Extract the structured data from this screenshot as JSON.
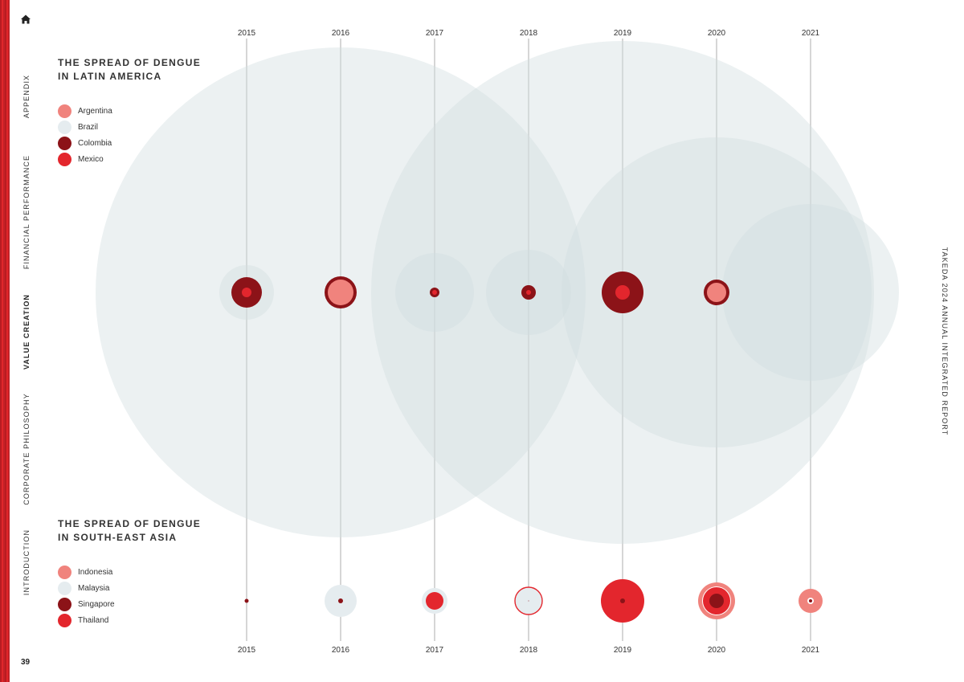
{
  "nav": {
    "items": [
      {
        "label": "APPENDIX",
        "active": false
      },
      {
        "label": "FINANCIAL PERFORMANCE",
        "active": false
      },
      {
        "label": "VALUE CREATION",
        "active": true
      },
      {
        "label": "CORPORATE PHILOSOPHY",
        "active": false
      },
      {
        "label": "INTRODUCTION",
        "active": false
      }
    ],
    "home_icon": "home-icon",
    "page_number": "39"
  },
  "report_title": "TAKEDA 2024 ANNUAL INTEGRATED REPORT",
  "colors": {
    "argentina": "#f0837d",
    "brazil": "#d2dde1",
    "colombia": "#8c1318",
    "mexico": "#e3262d",
    "indonesia": "#f0837d",
    "malaysia": "#e5ecef",
    "singapore": "#8c1318",
    "thailand": "#e3262d",
    "accent": "#e0262b"
  },
  "chart_data": [
    {
      "type": "bubble",
      "title_lines": [
        "THE SPREAD OF DENGUE",
        "IN LATIN AMERICA"
      ],
      "legend": [
        "Argentina",
        "Brazil",
        "Colombia",
        "Mexico"
      ],
      "legend_colors": [
        "#f0837d",
        "#e5ecef",
        "#8c1318",
        "#e3262d"
      ],
      "x": [
        "2015",
        "2016",
        "2017",
        "2018",
        "2019",
        "2020",
        "2021"
      ],
      "series": [
        {
          "name": "Brazil",
          "values": [
            34,
            305,
            49,
            53,
            313,
            193,
            110
          ]
        },
        {
          "name": "Colombia",
          "values": [
            19,
            20,
            6,
            9,
            26,
            16,
            0
          ]
        },
        {
          "name": "Argentina",
          "values": [
            0,
            16,
            0,
            0,
            0,
            12,
            0
          ]
        },
        {
          "name": "Mexico",
          "values": [
            6,
            0,
            3,
            3,
            9,
            0,
            0
          ]
        }
      ],
      "scale_note": "values are relative bubble radii"
    },
    {
      "type": "bubble",
      "title_lines": [
        "THE SPREAD OF DENGUE",
        "IN SOUTH-EAST ASIA"
      ],
      "legend": [
        "Indonesia",
        "Malaysia",
        "Singapore",
        "Thailand"
      ],
      "legend_colors": [
        "#f0837d",
        "#e5ecef",
        "#8c1318",
        "#e3262d"
      ],
      "x": [
        "2015",
        "2016",
        "2017",
        "2018",
        "2019",
        "2020",
        "2021"
      ],
      "series": [
        {
          "name": "Indonesia",
          "values": [
            0,
            0,
            0,
            0,
            0,
            23,
            15
          ]
        },
        {
          "name": "Malaysia",
          "values": [
            0,
            20,
            16,
            17,
            0,
            0,
            0
          ]
        },
        {
          "name": "Thailand",
          "values": [
            0,
            0,
            11,
            17,
            27,
            17,
            0
          ]
        },
        {
          "name": "Singapore",
          "values": [
            2.5,
            3,
            0,
            0.5,
            3,
            9,
            2
          ]
        }
      ],
      "scale_note": "values are relative bubble radii"
    }
  ]
}
